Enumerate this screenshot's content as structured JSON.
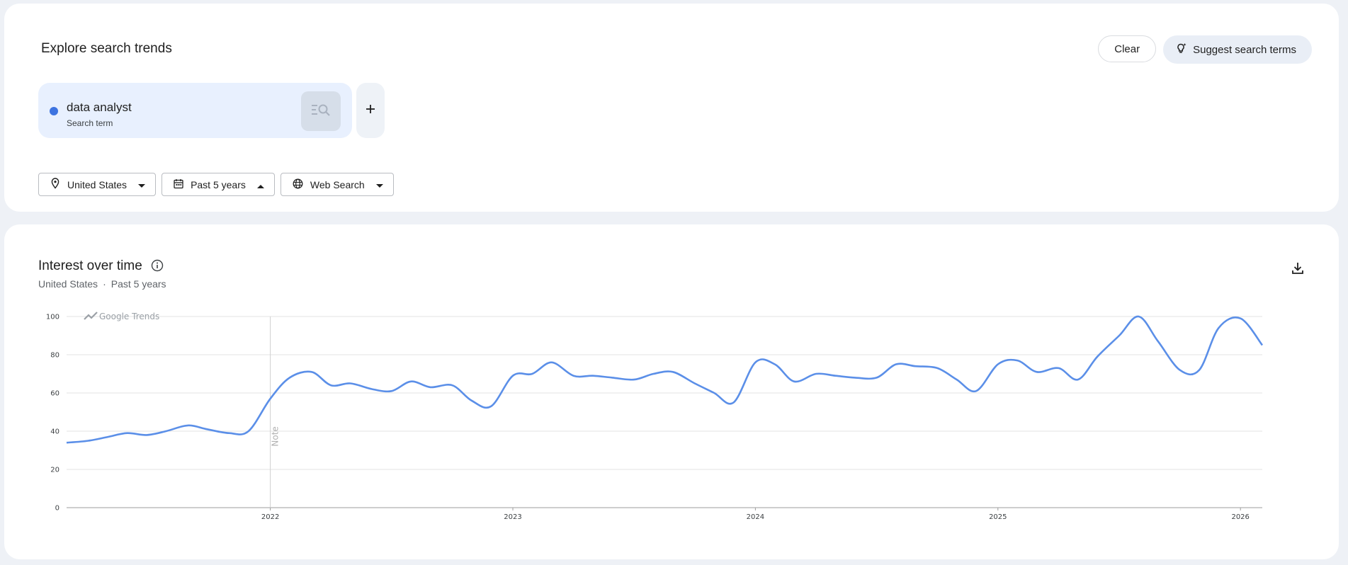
{
  "explore": {
    "title": "Explore search trends",
    "clear_label": "Clear",
    "suggest_label": "Suggest search terms",
    "term": {
      "name": "data analyst",
      "type": "Search term",
      "color": "#3d73e0"
    },
    "add_label": "+",
    "filters": {
      "location": "United States",
      "time": "Past 5 years",
      "property": "Web Search"
    }
  },
  "interest": {
    "title": "Interest over time",
    "subtitle_location": "United States",
    "subtitle_dot": "·",
    "subtitle_time": "Past 5 years",
    "watermark": "Google Trends",
    "note": "Note"
  },
  "chart_data": {
    "type": "line",
    "ylim": [
      0,
      100
    ],
    "yticks": [
      0,
      20,
      40,
      60,
      80,
      100
    ],
    "xticks": [
      {
        "label": "2022",
        "t": 2022.0
      },
      {
        "label": "2023",
        "t": 2023.0
      },
      {
        "label": "2024",
        "t": 2024.0
      },
      {
        "label": "2025",
        "t": 2025.0
      },
      {
        "label": "2026",
        "t": 2026.0
      }
    ],
    "x_range": [
      2021.16,
      2026.09
    ],
    "note_at": 2022.0,
    "grid": true,
    "series": [
      {
        "color": "#5b8fe8",
        "points": [
          [
            2021.16,
            34
          ],
          [
            2021.25,
            35
          ],
          [
            2021.33,
            37
          ],
          [
            2021.41,
            39
          ],
          [
            2021.49,
            38
          ],
          [
            2021.57,
            40
          ],
          [
            2021.66,
            43
          ],
          [
            2021.74,
            41
          ],
          [
            2021.83,
            39
          ],
          [
            2021.91,
            40
          ],
          [
            2022.0,
            57
          ],
          [
            2022.08,
            68
          ],
          [
            2022.17,
            71
          ],
          [
            2022.25,
            64
          ],
          [
            2022.33,
            65
          ],
          [
            2022.42,
            62
          ],
          [
            2022.5,
            61
          ],
          [
            2022.58,
            66
          ],
          [
            2022.66,
            63
          ],
          [
            2022.75,
            64
          ],
          [
            2022.83,
            56
          ],
          [
            2022.91,
            53
          ],
          [
            2023.0,
            69
          ],
          [
            2023.08,
            70
          ],
          [
            2023.16,
            76
          ],
          [
            2023.25,
            69
          ],
          [
            2023.33,
            69
          ],
          [
            2023.41,
            68
          ],
          [
            2023.5,
            67
          ],
          [
            2023.58,
            70
          ],
          [
            2023.66,
            71
          ],
          [
            2023.75,
            65
          ],
          [
            2023.83,
            60
          ],
          [
            2023.91,
            55
          ],
          [
            2024.0,
            76
          ],
          [
            2024.08,
            75
          ],
          [
            2024.16,
            66
          ],
          [
            2024.25,
            70
          ],
          [
            2024.33,
            69
          ],
          [
            2024.41,
            68
          ],
          [
            2024.5,
            68
          ],
          [
            2024.58,
            75
          ],
          [
            2024.66,
            74
          ],
          [
            2024.75,
            73
          ],
          [
            2024.83,
            67
          ],
          [
            2024.91,
            61
          ],
          [
            2025.0,
            75
          ],
          [
            2025.08,
            77
          ],
          [
            2025.16,
            71
          ],
          [
            2025.25,
            73
          ],
          [
            2025.33,
            67
          ],
          [
            2025.41,
            79
          ],
          [
            2025.5,
            90
          ],
          [
            2025.58,
            100
          ],
          [
            2025.66,
            87
          ],
          [
            2025.75,
            72
          ],
          [
            2025.83,
            72
          ],
          [
            2025.91,
            94
          ],
          [
            2026.0,
            99
          ],
          [
            2026.09,
            85
          ]
        ]
      }
    ]
  }
}
